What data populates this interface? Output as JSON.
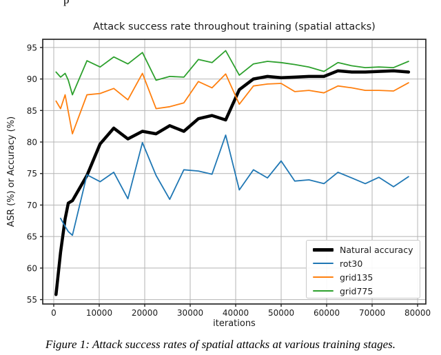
{
  "page": {
    "cropped_fragment": "p"
  },
  "figure_caption": "Figure 1: Attack success rates of spatial attacks at various training stages.",
  "chart_data": {
    "type": "line",
    "title": "Attack success rate throughout training (spatial attacks)",
    "xlabel": "iterations",
    "ylabel": "ASR (%) or Accuracy (%)",
    "xlim": [
      -2424,
      81810
    ],
    "ylim": [
      54.3,
      96.3
    ],
    "xticks": [
      0,
      10000,
      20000,
      30000,
      40000,
      50000,
      60000,
      70000,
      80000
    ],
    "yticks": [
      55,
      60,
      65,
      70,
      75,
      80,
      85,
      90,
      95
    ],
    "grid": true,
    "grid_color": "#b4b4b4",
    "spine_color": "#262626",
    "legend_position": "lower right",
    "x": [
      500,
      1500,
      2500,
      3200,
      4100,
      7300,
      10200,
      13200,
      16300,
      19500,
      22500,
      25500,
      28600,
      31800,
      34800,
      37800,
      40800,
      43900,
      47000,
      50000,
      53000,
      56100,
      59400,
      62500,
      65500,
      68500,
      71500,
      74700,
      78000
    ],
    "series": [
      {
        "name": "Natural accuracy",
        "color": "#000000",
        "linewidth": 4.5,
        "values": [
          55.8,
          62.5,
          67.8,
          70.3,
          70.7,
          74.7,
          79.7,
          82.2,
          80.5,
          81.7,
          81.3,
          82.6,
          81.7,
          83.7,
          84.2,
          83.5,
          88.3,
          90.0,
          90.4,
          90.2,
          90.3,
          90.4,
          90.4,
          91.3,
          91.1,
          91.1,
          91.2,
          91.3,
          91.1
        ]
      },
      {
        "name": "rot30",
        "color": "#1f77b4",
        "linewidth": 1.8,
        "values": [
          null,
          67.9,
          66.6,
          65.8,
          65.2,
          74.8,
          73.7,
          75.2,
          71.0,
          79.9,
          74.7,
          70.9,
          75.6,
          75.4,
          74.9,
          81.1,
          72.4,
          75.6,
          74.3,
          77.0,
          73.8,
          74.0,
          73.4,
          75.2,
          74.3,
          73.4,
          74.4,
          72.9,
          74.5
        ]
      },
      {
        "name": "grid135",
        "color": "#ff7f0e",
        "linewidth": 1.8,
        "values": [
          86.5,
          85.3,
          87.5,
          84.8,
          81.3,
          87.5,
          87.7,
          88.5,
          86.7,
          90.9,
          85.3,
          85.6,
          86.2,
          89.6,
          88.6,
          90.8,
          86.0,
          88.9,
          89.2,
          89.3,
          88.0,
          88.2,
          87.8,
          88.9,
          88.6,
          88.2,
          88.2,
          88.1,
          89.4
        ]
      },
      {
        "name": "grid775",
        "color": "#2ca02c",
        "linewidth": 1.8,
        "values": [
          91.1,
          90.3,
          90.9,
          89.8,
          87.5,
          92.9,
          91.9,
          93.5,
          92.4,
          94.2,
          89.8,
          90.4,
          90.3,
          93.1,
          92.6,
          94.5,
          90.6,
          92.4,
          92.8,
          92.6,
          92.3,
          91.9,
          91.2,
          92.6,
          92.1,
          91.8,
          91.9,
          91.8,
          92.8
        ]
      }
    ]
  }
}
